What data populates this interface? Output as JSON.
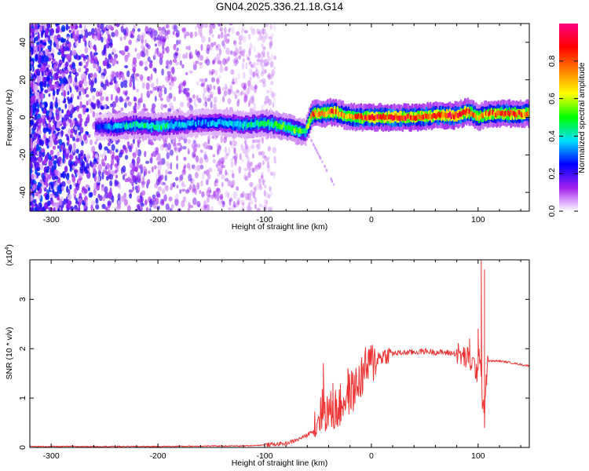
{
  "title": "GN04.2025.336.21.18.G14",
  "chart_data": [
    {
      "type": "heatmap",
      "xlabel": "Height of straight line (km)",
      "ylabel": "Frequency (Hz)",
      "xlim": [
        -320,
        148
      ],
      "ylim": [
        -50,
        50
      ],
      "x_ticks": [
        -300,
        -200,
        -100,
        0,
        100
      ],
      "y_ticks": [
        -40,
        -20,
        0,
        20,
        40
      ],
      "colorbar": {
        "label": "Normalized spectral amplitude",
        "range": [
          0,
          1
        ],
        "ticks": [
          "0.0",
          "0.2",
          "0.4",
          "0.6",
          "0.8"
        ],
        "colormap": [
          "#ffffff",
          "#a020f0",
          "#0000ff",
          "#00e0ff",
          "#00ff00",
          "#ffff00",
          "#ff8000",
          "#ff0000",
          "#ff0080"
        ]
      },
      "ridge": {
        "x": [
          -258,
          -240,
          -220,
          -200,
          -180,
          -160,
          -140,
          -120,
          -100,
          -80,
          -70,
          -62,
          -55,
          -45,
          -35,
          -25,
          -15,
          0,
          20,
          40,
          60,
          80,
          90,
          95,
          100,
          110,
          130,
          148
        ],
        "frequency": [
          -5,
          -5,
          -4,
          -5,
          -4,
          -3,
          -3,
          -4,
          -3,
          -5,
          -7,
          -8,
          2,
          2,
          3,
          1,
          0,
          0,
          0,
          0,
          1,
          1,
          3,
          2,
          0,
          2,
          2,
          2
        ],
        "amplitude": [
          0.25,
          0.4,
          0.45,
          0.5,
          0.4,
          0.35,
          0.4,
          0.45,
          0.5,
          0.55,
          0.6,
          0.5,
          0.85,
          0.8,
          0.9,
          0.75,
          0.85,
          0.95,
          0.95,
          0.95,
          0.9,
          0.95,
          0.9,
          0.85,
          0.7,
          0.85,
          0.9,
          0.85
        ]
      }
    },
    {
      "type": "line",
      "xlabel": "Height of straight line (km)",
      "ylabel": "SNR (10 * v/v)",
      "y_multiplier": "(x10^4)",
      "xlim": [
        -320,
        148
      ],
      "ylim": [
        0,
        3.8
      ],
      "x_ticks": [
        -300,
        -200,
        -100,
        0,
        100
      ],
      "y_ticks": [
        0,
        1,
        2,
        3
      ],
      "color": "#ee3333",
      "series": [
        {
          "x": [
            -320,
            -300,
            -250,
            -200,
            -150,
            -120,
            -100,
            -80,
            -70,
            -60,
            -55,
            -50,
            -45,
            -40,
            -35,
            -30,
            -25,
            -20,
            -15,
            -10,
            -5,
            0,
            5,
            10,
            20,
            30,
            40,
            50,
            60,
            70,
            80,
            90,
            95,
            100,
            102,
            104,
            106,
            108,
            110,
            120,
            130,
            140,
            148
          ],
          "y": [
            0.02,
            0.02,
            0.02,
            0.02,
            0.03,
            0.03,
            0.05,
            0.08,
            0.15,
            0.25,
            0.35,
            0.6,
            0.8,
            0.7,
            0.75,
            0.8,
            1.0,
            1.1,
            1.2,
            1.4,
            1.6,
            1.7,
            1.8,
            1.85,
            1.9,
            1.92,
            1.93,
            1.95,
            1.93,
            1.92,
            1.9,
            1.8,
            1.7,
            1.5,
            2.0,
            1.0,
            0.8,
            1.5,
            1.75,
            1.75,
            1.72,
            1.68,
            1.65
          ]
        }
      ],
      "spikes": [
        {
          "x": -45,
          "y": 1.7
        },
        {
          "x": -36,
          "y": 1.3
        },
        {
          "x": -22,
          "y": 1.6
        },
        {
          "x": -8,
          "y": 1.6
        },
        {
          "x": -3,
          "y": 1.9
        },
        {
          "x": 10,
          "y": 1.8
        },
        {
          "x": 92,
          "y": 2.2
        },
        {
          "x": 100,
          "y": 2.4
        },
        {
          "x": 103,
          "y": 3.8
        },
        {
          "x": 106,
          "y": 3.6
        },
        {
          "x": 106,
          "y": 0.4
        }
      ]
    }
  ]
}
